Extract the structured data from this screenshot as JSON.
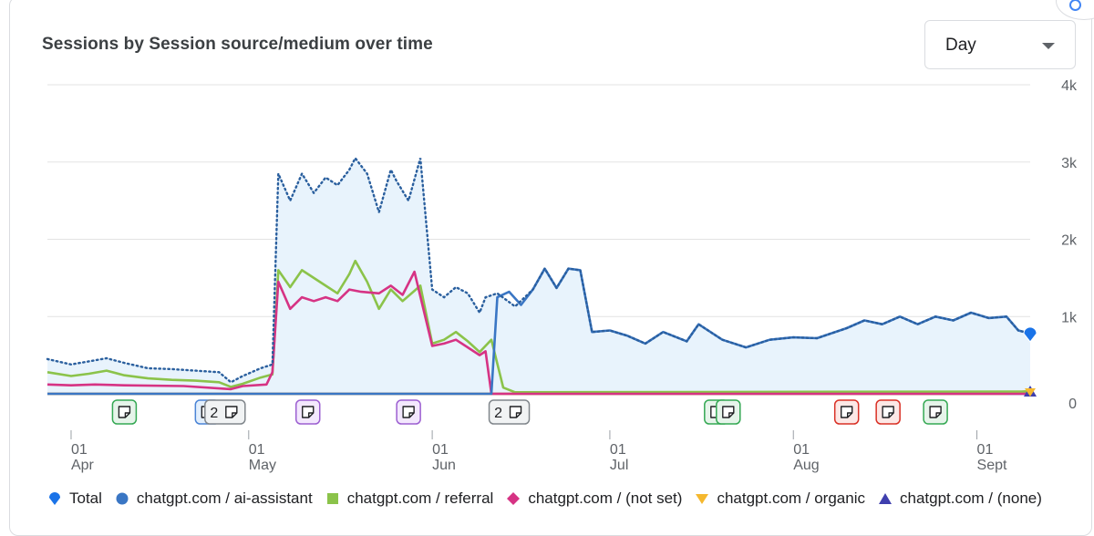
{
  "card": {
    "title": "Sessions by Session source/medium over time"
  },
  "granularity": {
    "selected": "Day"
  },
  "chart_data": {
    "type": "line",
    "title": "Sessions by Session source/medium over time",
    "x_start": "2025-03-28",
    "x_end": "2025-09-10",
    "y_axis_position": "right",
    "ylim": [
      0,
      4000
    ],
    "y_ticks": [
      0,
      1000,
      2000,
      3000,
      4000
    ],
    "y_tick_labels": [
      "0",
      "1k",
      "2k",
      "3k",
      "4k"
    ],
    "x_tick_labels": [
      {
        "day": "01",
        "month": "Apr",
        "date": "2025-04-01"
      },
      {
        "day": "01",
        "month": "May",
        "date": "2025-05-01"
      },
      {
        "day": "01",
        "month": "Jun",
        "date": "2025-06-01"
      },
      {
        "day": "01",
        "month": "Jul",
        "date": "2025-07-01"
      },
      {
        "day": "01",
        "month": "Aug",
        "date": "2025-08-01"
      },
      {
        "day": "01",
        "month": "Sept",
        "date": "2025-09-01"
      }
    ],
    "grid": true,
    "legend_position": "bottom",
    "annotations": [
      {
        "date": "2025-04-10",
        "label": "",
        "color": "green"
      },
      {
        "date": "2025-04-24",
        "label": "",
        "color": "blue"
      },
      {
        "date": "2025-04-27",
        "label": "2",
        "color": "gray"
      },
      {
        "date": "2025-05-11",
        "label": "",
        "color": "purple"
      },
      {
        "date": "2025-05-28",
        "label": "",
        "color": "purple"
      },
      {
        "date": "2025-06-14",
        "label": "2",
        "color": "gray"
      },
      {
        "date": "2025-07-19",
        "label": "",
        "color": "green"
      },
      {
        "date": "2025-07-21",
        "label": "",
        "color": "green"
      },
      {
        "date": "2025-08-10",
        "label": "",
        "color": "red"
      },
      {
        "date": "2025-08-17",
        "label": "",
        "color": "red"
      },
      {
        "date": "2025-08-25",
        "label": "",
        "color": "green"
      }
    ],
    "series": [
      {
        "name": "Total",
        "color": "#1a73e8",
        "style": "dotted-area",
        "points": [
          [
            "2025-03-28",
            450
          ],
          [
            "2025-04-01",
            380
          ],
          [
            "2025-04-04",
            420
          ],
          [
            "2025-04-07",
            460
          ],
          [
            "2025-04-10",
            400
          ],
          [
            "2025-04-14",
            330
          ],
          [
            "2025-04-18",
            320
          ],
          [
            "2025-04-22",
            300
          ],
          [
            "2025-04-26",
            280
          ],
          [
            "2025-04-28",
            150
          ],
          [
            "2025-04-30",
            230
          ],
          [
            "2025-05-03",
            330
          ],
          [
            "2025-05-05",
            380
          ],
          [
            "2025-05-06",
            2850
          ],
          [
            "2025-05-08",
            2500
          ],
          [
            "2025-05-10",
            2850
          ],
          [
            "2025-05-12",
            2600
          ],
          [
            "2025-05-14",
            2800
          ],
          [
            "2025-05-16",
            2700
          ],
          [
            "2025-05-18",
            2900
          ],
          [
            "2025-05-19",
            3050
          ],
          [
            "2025-05-21",
            2850
          ],
          [
            "2025-05-23",
            2350
          ],
          [
            "2025-05-25",
            2900
          ],
          [
            "2025-05-26",
            2750
          ],
          [
            "2025-05-28",
            2500
          ],
          [
            "2025-05-30",
            3050
          ],
          [
            "2025-06-01",
            1350
          ],
          [
            "2025-06-03",
            1250
          ],
          [
            "2025-06-05",
            1380
          ],
          [
            "2025-06-07",
            1300
          ],
          [
            "2025-06-09",
            1050
          ],
          [
            "2025-06-10",
            1250
          ],
          [
            "2025-06-12",
            1300
          ],
          [
            "2025-06-15",
            1130
          ],
          [
            "2025-06-18",
            1350
          ],
          [
            "2025-06-20",
            1620
          ],
          [
            "2025-06-22",
            1370
          ],
          [
            "2025-06-24",
            1620
          ],
          [
            "2025-06-26",
            1600
          ],
          [
            "2025-06-28",
            800
          ],
          [
            "2025-07-01",
            820
          ],
          [
            "2025-07-04",
            750
          ],
          [
            "2025-07-07",
            650
          ],
          [
            "2025-07-10",
            800
          ],
          [
            "2025-07-14",
            680
          ],
          [
            "2025-07-16",
            900
          ],
          [
            "2025-07-20",
            700
          ],
          [
            "2025-07-24",
            600
          ],
          [
            "2025-07-28",
            700
          ],
          [
            "2025-08-01",
            730
          ],
          [
            "2025-08-05",
            720
          ],
          [
            "2025-08-10",
            850
          ],
          [
            "2025-08-13",
            950
          ],
          [
            "2025-08-16",
            900
          ],
          [
            "2025-08-19",
            1000
          ],
          [
            "2025-08-22",
            900
          ],
          [
            "2025-08-25",
            1000
          ],
          [
            "2025-08-28",
            950
          ],
          [
            "2025-08-31",
            1050
          ],
          [
            "2025-09-03",
            980
          ],
          [
            "2025-09-06",
            1000
          ],
          [
            "2025-09-08",
            820
          ],
          [
            "2025-09-10",
            780
          ]
        ]
      },
      {
        "name": "chatgpt.com / ai-assistant",
        "color": "#3a76c4",
        "style": "line",
        "points": [
          [
            "2025-03-28",
            0
          ],
          [
            "2025-06-11",
            0
          ],
          [
            "2025-06-12",
            1250
          ],
          [
            "2025-06-14",
            1320
          ],
          [
            "2025-06-16",
            1150
          ],
          [
            "2025-06-18",
            1350
          ],
          [
            "2025-06-20",
            1620
          ],
          [
            "2025-06-22",
            1370
          ],
          [
            "2025-06-24",
            1620
          ],
          [
            "2025-06-26",
            1600
          ],
          [
            "2025-06-28",
            800
          ],
          [
            "2025-07-01",
            820
          ],
          [
            "2025-07-04",
            750
          ],
          [
            "2025-07-07",
            650
          ],
          [
            "2025-07-10",
            800
          ],
          [
            "2025-07-14",
            680
          ],
          [
            "2025-07-16",
            900
          ],
          [
            "2025-07-20",
            700
          ],
          [
            "2025-07-24",
            600
          ],
          [
            "2025-07-28",
            700
          ],
          [
            "2025-08-01",
            730
          ],
          [
            "2025-08-05",
            720
          ],
          [
            "2025-08-10",
            850
          ],
          [
            "2025-08-13",
            950
          ],
          [
            "2025-08-16",
            900
          ],
          [
            "2025-08-19",
            1000
          ],
          [
            "2025-08-22",
            900
          ],
          [
            "2025-08-25",
            1000
          ],
          [
            "2025-08-28",
            950
          ],
          [
            "2025-08-31",
            1050
          ],
          [
            "2025-09-03",
            980
          ],
          [
            "2025-09-06",
            1000
          ],
          [
            "2025-09-08",
            820
          ],
          [
            "2025-09-10",
            780
          ]
        ]
      },
      {
        "name": "chatgpt.com / referral",
        "color": "#8bc34a",
        "style": "line",
        "points": [
          [
            "2025-03-28",
            280
          ],
          [
            "2025-04-01",
            230
          ],
          [
            "2025-04-04",
            260
          ],
          [
            "2025-04-07",
            300
          ],
          [
            "2025-04-10",
            240
          ],
          [
            "2025-04-14",
            200
          ],
          [
            "2025-04-18",
            180
          ],
          [
            "2025-04-22",
            170
          ],
          [
            "2025-04-26",
            150
          ],
          [
            "2025-04-28",
            90
          ],
          [
            "2025-04-30",
            130
          ],
          [
            "2025-05-03",
            210
          ],
          [
            "2025-05-05",
            250
          ],
          [
            "2025-05-06",
            1600
          ],
          [
            "2025-05-08",
            1380
          ],
          [
            "2025-05-10",
            1600
          ],
          [
            "2025-05-12",
            1500
          ],
          [
            "2025-05-14",
            1400
          ],
          [
            "2025-05-16",
            1300
          ],
          [
            "2025-05-18",
            1550
          ],
          [
            "2025-05-19",
            1720
          ],
          [
            "2025-05-21",
            1450
          ],
          [
            "2025-05-23",
            1100
          ],
          [
            "2025-05-25",
            1350
          ],
          [
            "2025-05-27",
            1200
          ],
          [
            "2025-05-30",
            1400
          ],
          [
            "2025-06-01",
            650
          ],
          [
            "2025-06-03",
            700
          ],
          [
            "2025-06-05",
            800
          ],
          [
            "2025-06-07",
            680
          ],
          [
            "2025-06-09",
            540
          ],
          [
            "2025-06-11",
            700
          ],
          [
            "2025-06-13",
            80
          ],
          [
            "2025-06-15",
            20
          ],
          [
            "2025-09-10",
            30
          ]
        ]
      },
      {
        "name": "chatgpt.com / (not set)",
        "color": "#d63384",
        "style": "line",
        "points": [
          [
            "2025-03-28",
            120
          ],
          [
            "2025-04-01",
            110
          ],
          [
            "2025-04-05",
            120
          ],
          [
            "2025-04-10",
            110
          ],
          [
            "2025-04-20",
            100
          ],
          [
            "2025-04-28",
            60
          ],
          [
            "2025-04-30",
            100
          ],
          [
            "2025-05-04",
            120
          ],
          [
            "2025-05-05",
            280
          ],
          [
            "2025-05-06",
            1450
          ],
          [
            "2025-05-08",
            1100
          ],
          [
            "2025-05-10",
            1250
          ],
          [
            "2025-05-12",
            1200
          ],
          [
            "2025-05-14",
            1250
          ],
          [
            "2025-05-16",
            1200
          ],
          [
            "2025-05-18",
            1350
          ],
          [
            "2025-05-20",
            1320
          ],
          [
            "2025-05-23",
            1300
          ],
          [
            "2025-05-25",
            1400
          ],
          [
            "2025-05-27",
            1280
          ],
          [
            "2025-05-29",
            1580
          ],
          [
            "2025-06-01",
            620
          ],
          [
            "2025-06-03",
            650
          ],
          [
            "2025-06-05",
            700
          ],
          [
            "2025-06-07",
            600
          ],
          [
            "2025-06-09",
            500
          ],
          [
            "2025-06-10",
            550
          ],
          [
            "2025-06-11",
            0
          ],
          [
            "2025-09-10",
            0
          ]
        ]
      },
      {
        "name": "chatgpt.com / organic",
        "color": "#f5b82e",
        "style": "line",
        "points": [
          [
            "2025-03-28",
            0
          ],
          [
            "2025-09-06",
            0
          ],
          [
            "2025-09-10",
            40
          ]
        ]
      },
      {
        "name": "chatgpt.com / (none)",
        "color": "#3f3fae",
        "style": "line",
        "points": [
          [
            "2025-03-28",
            0
          ],
          [
            "2025-09-10",
            0
          ]
        ]
      }
    ]
  },
  "legend": [
    {
      "label": "Total",
      "shape": "pin",
      "color": "#1a73e8"
    },
    {
      "label": "chatgpt.com / ai-assistant",
      "shape": "circle",
      "color": "#3a76c4"
    },
    {
      "label": "chatgpt.com / referral",
      "shape": "square",
      "color": "#8bc34a"
    },
    {
      "label": "chatgpt.com / (not set)",
      "shape": "diamond",
      "color": "#d63384"
    },
    {
      "label": "chatgpt.com / organic",
      "shape": "triangle-down",
      "color": "#f5b82e"
    },
    {
      "label": "chatgpt.com / (none)",
      "shape": "triangle-up",
      "color": "#3f3fae"
    }
  ]
}
